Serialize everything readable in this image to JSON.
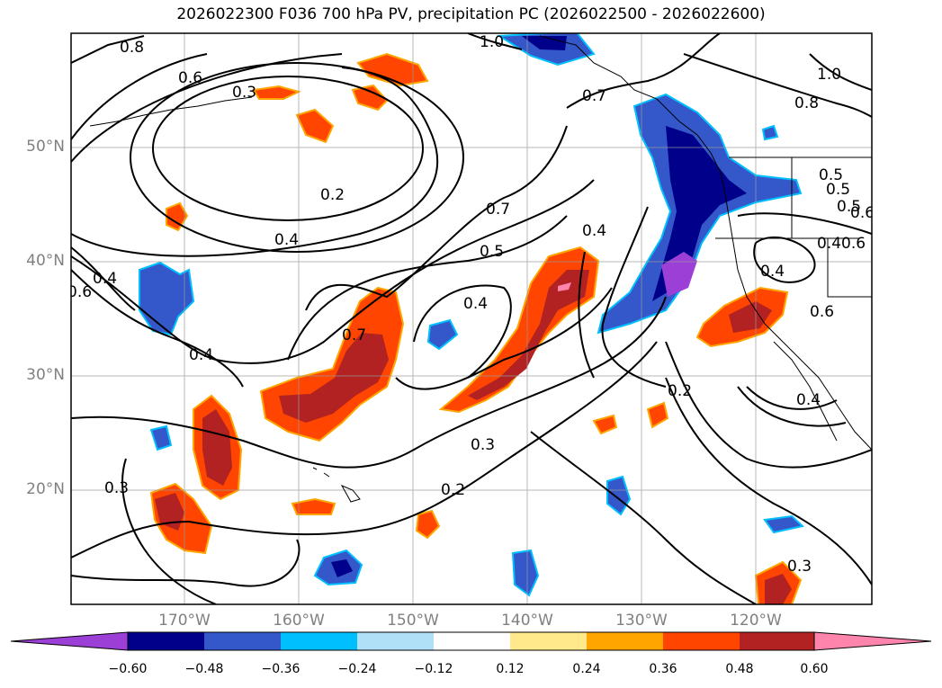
{
  "title": "2026022300 F036 700 hPa PV, precipitation PC (2026022500 - 2026022600)",
  "map": {
    "projection": "plate carrée",
    "lon_range": [
      -180,
      -110
    ],
    "lat_range": [
      10,
      60
    ],
    "gridlines": true,
    "lat_labels": [
      "50°N",
      "40°N",
      "30°N",
      "20°N"
    ],
    "lon_labels": [
      "170°W",
      "160°W",
      "150°W",
      "140°W",
      "130°W",
      "120°W"
    ],
    "contour_labels": [
      "0.8",
      "0.6",
      "0.3",
      "0.2",
      "0.4",
      "0.7",
      "0.5",
      "0.4",
      "1.0",
      "0.7",
      "0.8",
      "1.0",
      "0.4",
      "0.4",
      "0.7",
      "0.4",
      "0.2",
      "0.3",
      "0.2",
      "0.3",
      "0.3",
      "0.6",
      "0.5",
      "0.4",
      "0.4",
      "0.5",
      "0.6",
      "0.6",
      "0.4",
      "0.5",
      "0.6"
    ]
  },
  "colorbar": {
    "ticks": [
      "−0.60",
      "−0.48",
      "−0.36",
      "−0.24",
      "−0.12",
      "0.12",
      "0.24",
      "0.36",
      "0.48",
      "0.60"
    ],
    "colors": [
      "#9b3fd6",
      "#00008b",
      "#3457c9",
      "#00bfff",
      "#b0e0f8",
      "#ffffff",
      "#ffe98a",
      "#ffa500",
      "#ff4500",
      "#b22222",
      "#ff85ad"
    ]
  }
}
